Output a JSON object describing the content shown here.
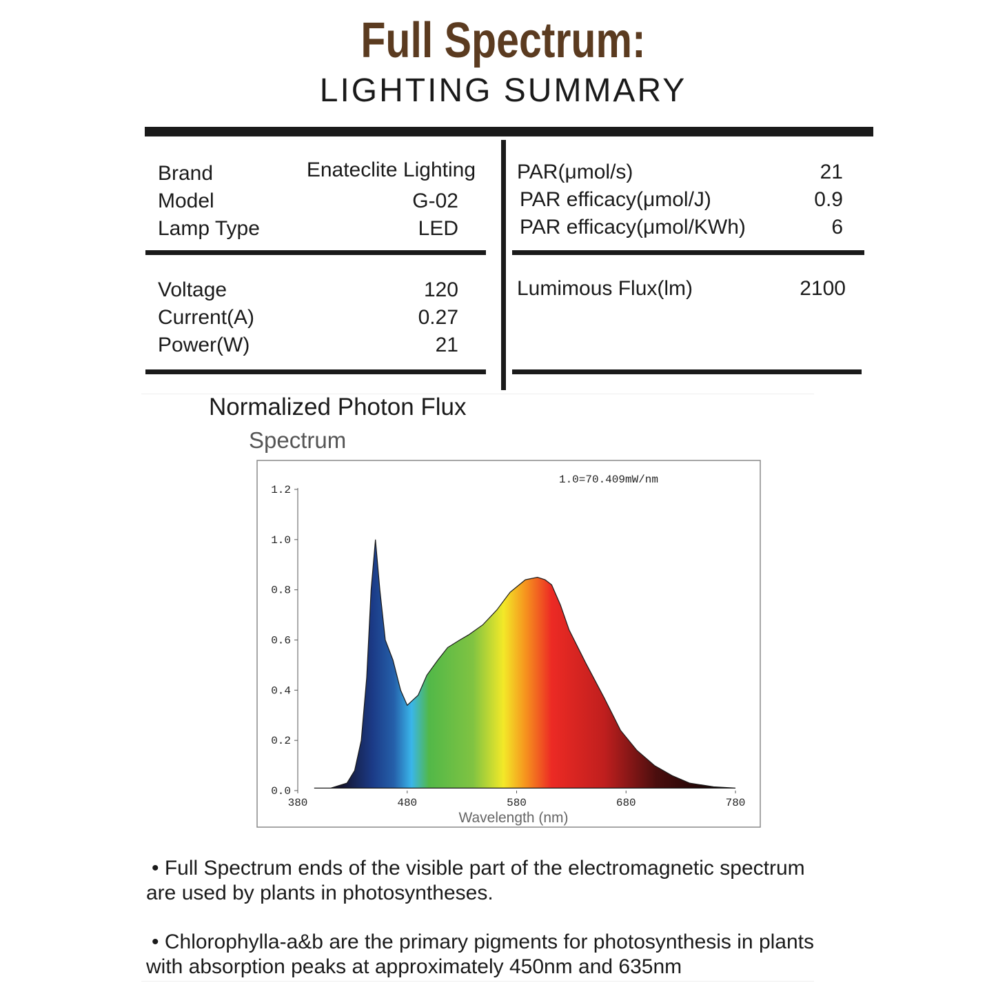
{
  "header": {
    "title": "Full Spectrum:",
    "subtitle": "LIGHTING SUMMARY"
  },
  "table": {
    "left": [
      [
        [
          "Brand",
          "Enateclite Lighting"
        ],
        [
          "Model",
          "G-02"
        ],
        [
          "Lamp Type",
          "LED"
        ]
      ],
      [
        [
          "Voltage",
          "120"
        ],
        [
          "Current(A)",
          "0.27"
        ],
        [
          "Power(W)",
          "21"
        ]
      ]
    ],
    "right": [
      [
        [
          "PAR(μmol/s)",
          "21"
        ],
        [
          "PAR efficacy(μmol/J)",
          "0.9"
        ],
        [
          "PAR efficacy(μmol/KWh)",
          "6"
        ]
      ],
      [
        [
          "Lumimous Flux(lm)",
          "2100"
        ]
      ]
    ]
  },
  "section_heading": "Normalized Photon Flux",
  "chart_data": {
    "type": "area",
    "title": "Spectrum",
    "annotation": "1.0=70.409mW/nm",
    "x_label": "Wavelength (nm)",
    "x": [
      395,
      410,
      425,
      432,
      438,
      443,
      447,
      451,
      455,
      460,
      467,
      474,
      480,
      490,
      498,
      508,
      517,
      528,
      536,
      549,
      562,
      574,
      588,
      599,
      606,
      612,
      620,
      628,
      643,
      660,
      675,
      690,
      706,
      722,
      738,
      760,
      780
    ],
    "values": [
      0.01,
      0.01,
      0.03,
      0.08,
      0.2,
      0.45,
      0.8,
      1.0,
      0.8,
      0.6,
      0.52,
      0.4,
      0.34,
      0.38,
      0.46,
      0.52,
      0.57,
      0.6,
      0.62,
      0.66,
      0.72,
      0.79,
      0.84,
      0.85,
      0.84,
      0.82,
      0.74,
      0.64,
      0.51,
      0.37,
      0.24,
      0.16,
      0.1,
      0.06,
      0.03,
      0.015,
      0.01
    ],
    "color": "#1a1a1a",
    "xlim": [
      380,
      780
    ],
    "xticks": [
      380,
      480,
      580,
      680,
      780
    ],
    "ylim": [
      0,
      1.2
    ],
    "yticks": [
      {
        "value": 0,
        "label": "0.0"
      },
      0.2,
      0.4,
      0.6,
      0.8,
      {
        "value": 1,
        "label": "1.0"
      },
      1.2
    ]
  },
  "notes": [
    "Full Spectrum ends of the visible part of the electromagnetic spectrum are used by plants in photosyntheses.",
    "Chlorophylla-a&b are the primary pigments for photosynthesis in plants with absorption peaks at approximately 450nm and 635nm"
  ]
}
